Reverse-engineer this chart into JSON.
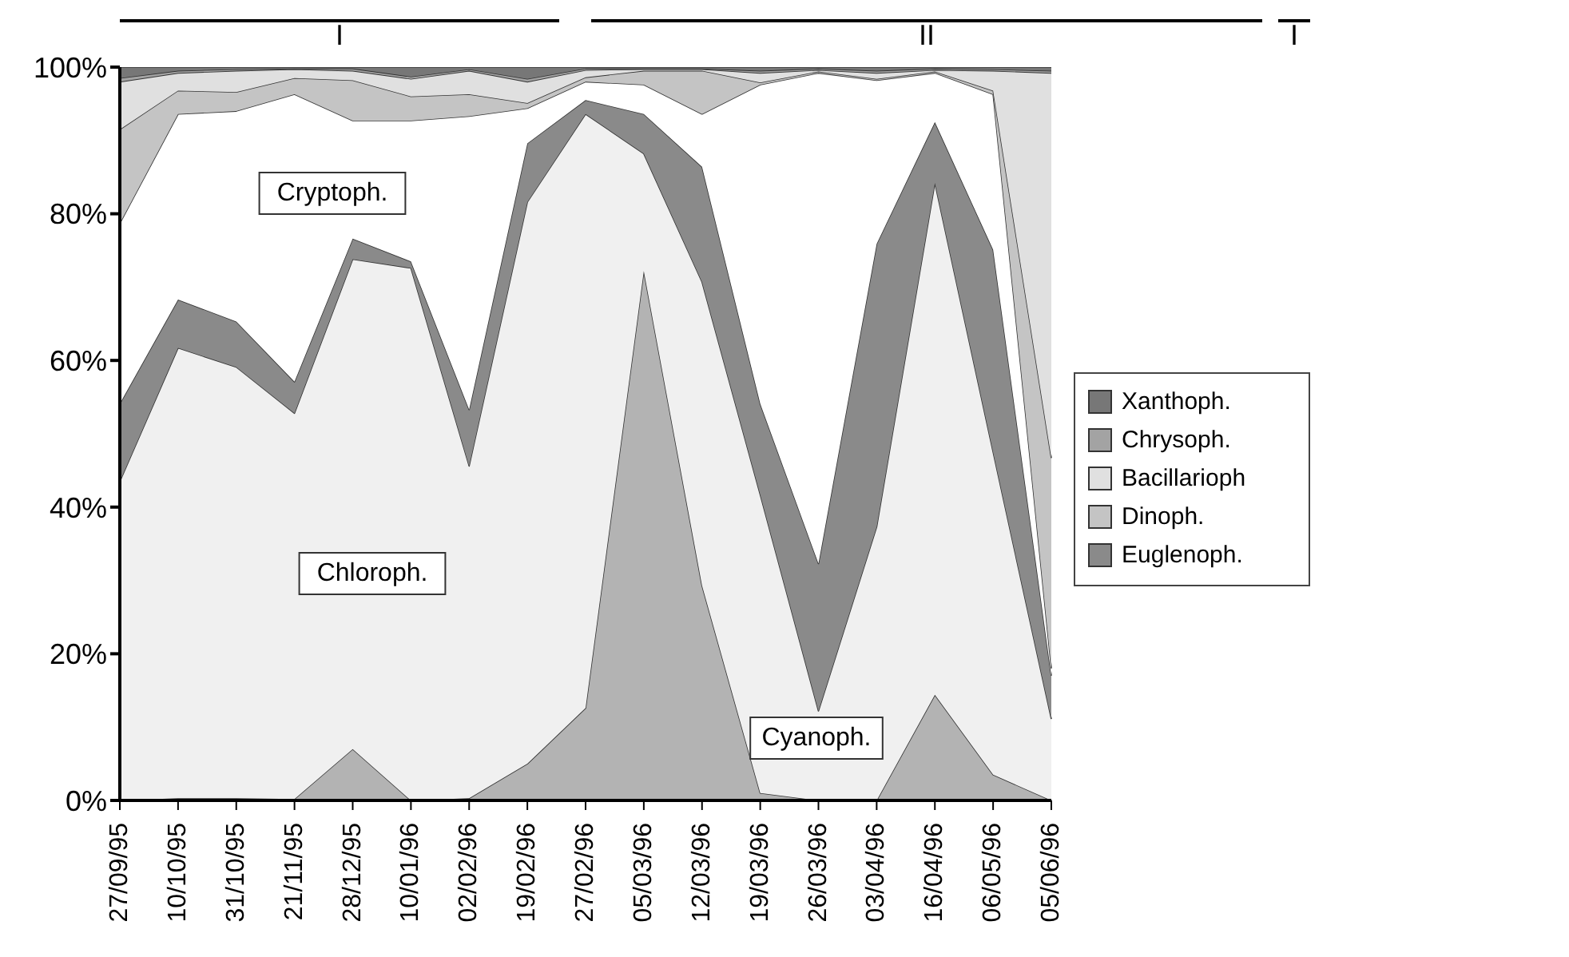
{
  "chart_data": {
    "type": "area",
    "stacked": true,
    "categories": [
      "27/09/95",
      "10/10/95",
      "31/10/95",
      "21/11/95",
      "28/12/95",
      "10/01/96",
      "02/02/96",
      "19/02/96",
      "27/02/96",
      "05/03/96",
      "12/03/96",
      "19/03/96",
      "26/03/96",
      "03/04/96",
      "16/04/96",
      "06/05/96",
      "05/06/96"
    ],
    "series": [
      {
        "color": "#b3b3b3",
        "values": [
          0,
          0.3,
          0.3,
          0.2,
          7,
          0,
          0.3,
          5,
          12.6,
          72.2,
          29.3,
          1,
          0,
          0,
          14.4,
          3.5,
          0
        ]
      },
      {
        "color": "#f0f0f0",
        "values": [
          43.5,
          61.4,
          58.8,
          52.6,
          66.8,
          72.6,
          45.3,
          76.6,
          81,
          16,
          41.4,
          40.7,
          12.2,
          37.3,
          69.8,
          44,
          11.1
        ]
      },
      {
        "name": "Euglenoph.",
        "color": "#8a8a8a",
        "values": [
          10.6,
          6.6,
          6.2,
          4.3,
          2.8,
          0.9,
          7.7,
          8,
          1.9,
          5.4,
          15.7,
          12.4,
          20.1,
          38.6,
          8.3,
          27.6,
          5.9
        ]
      },
      {
        "color": "#ffffff",
        "values": [
          24.6,
          25.3,
          28.7,
          39.2,
          16.1,
          19.2,
          40,
          4.8,
          2.5,
          4,
          7.2,
          43.5,
          66.9,
          22.3,
          6.7,
          21.2,
          1
        ]
      },
      {
        "name": "Dinoph.",
        "color": "#c4c4c4",
        "values": [
          12.8,
          3.2,
          2.6,
          2.2,
          5.5,
          3.3,
          3,
          0.7,
          0.6,
          1.9,
          5.9,
          0.3,
          0.2,
          0.2,
          0.2,
          0.5,
          28.7
        ]
      },
      {
        "name": "Bacillarioph",
        "color": "#e0e0e0",
        "values": [
          6.5,
          2.4,
          2.9,
          1.2,
          1.3,
          2.4,
          3.2,
          2.9,
          1,
          0.2,
          0.2,
          1.3,
          0.2,
          0.8,
          0.2,
          2.7,
          52.5
        ]
      },
      {
        "name": "Chrysoph.",
        "color": "#a3a3a3",
        "values": [
          0.5,
          0.3,
          0.2,
          0.1,
          0.3,
          0.3,
          0.2,
          0.4,
          0.2,
          0.1,
          0.1,
          0.3,
          0.2,
          0.3,
          0.2,
          0.2,
          0.3
        ]
      },
      {
        "name": "Xanthoph.",
        "color": "#777777",
        "values": [
          1.5,
          0.5,
          0.3,
          0.2,
          0.2,
          1.3,
          0.3,
          1.6,
          0.2,
          0.2,
          0.2,
          0.5,
          0.2,
          0.5,
          0.2,
          0.3,
          0.5
        ]
      }
    ],
    "ylim": [
      0,
      100
    ],
    "yticks": [
      {
        "value": 0,
        "label": "0%"
      },
      {
        "value": 20,
        "label": "20%"
      },
      {
        "value": 40,
        "label": "40%"
      },
      {
        "value": 60,
        "label": "60%"
      },
      {
        "value": 80,
        "label": "80%"
      },
      {
        "value": 100,
        "label": "100%"
      }
    ],
    "annotations": [
      "Cryptoph.",
      "Chloroph.",
      "Cyanoph.",
      "I",
      "II",
      "I"
    ],
    "legend": "right"
  }
}
